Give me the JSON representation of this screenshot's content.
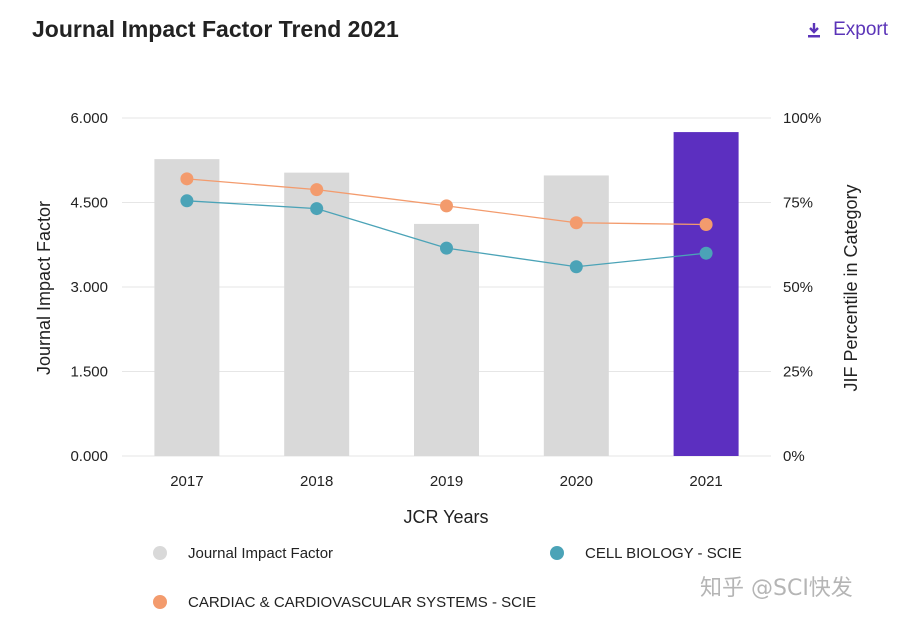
{
  "header": {
    "title": "Journal Impact Factor Trend 2021",
    "export_label": "Export",
    "export_icon": "download-icon"
  },
  "watermark": "知乎 @SCI快发",
  "colors": {
    "bar_default": "#d9d9d9",
    "bar_highlight": "#5c2fc0",
    "cell_biology": "#4ba3b7",
    "cardiac": "#f39b6d",
    "grid": "#e6e6e6",
    "accent": "#5b34b8"
  },
  "chart_data": {
    "type": "bar",
    "categories": [
      "2017",
      "2018",
      "2019",
      "2020",
      "2021"
    ],
    "series": [
      {
        "name": "Journal Impact Factor",
        "kind": "bar",
        "axis": "left",
        "values": [
          5.27,
          5.03,
          4.12,
          4.98,
          5.75
        ]
      },
      {
        "name": "CELL BIOLOGY - SCIE",
        "kind": "line",
        "axis": "right",
        "values": [
          75.5,
          73.2,
          61.5,
          56.0,
          60.0
        ]
      },
      {
        "name": "CARDIAC & CARDIOVASCULAR SYSTEMS - SCIE",
        "kind": "line",
        "axis": "right",
        "values": [
          82.0,
          78.8,
          74.0,
          69.0,
          68.5
        ]
      }
    ],
    "title": "Journal Impact Factor Trend 2021",
    "xlabel": "JCR Years",
    "ylabel": "Journal Impact Factor",
    "ylabel_right": "JIF Percentile in Category",
    "ylim": [
      0,
      6
    ],
    "ylim_right": [
      0,
      100
    ],
    "yticks": [
      "0.000",
      "1.500",
      "3.000",
      "4.500",
      "6.000"
    ],
    "yticks_right": [
      "0%",
      "25%",
      "50%",
      "75%",
      "100%"
    ],
    "highlight_category": "2021",
    "legend_position": "bottom"
  }
}
